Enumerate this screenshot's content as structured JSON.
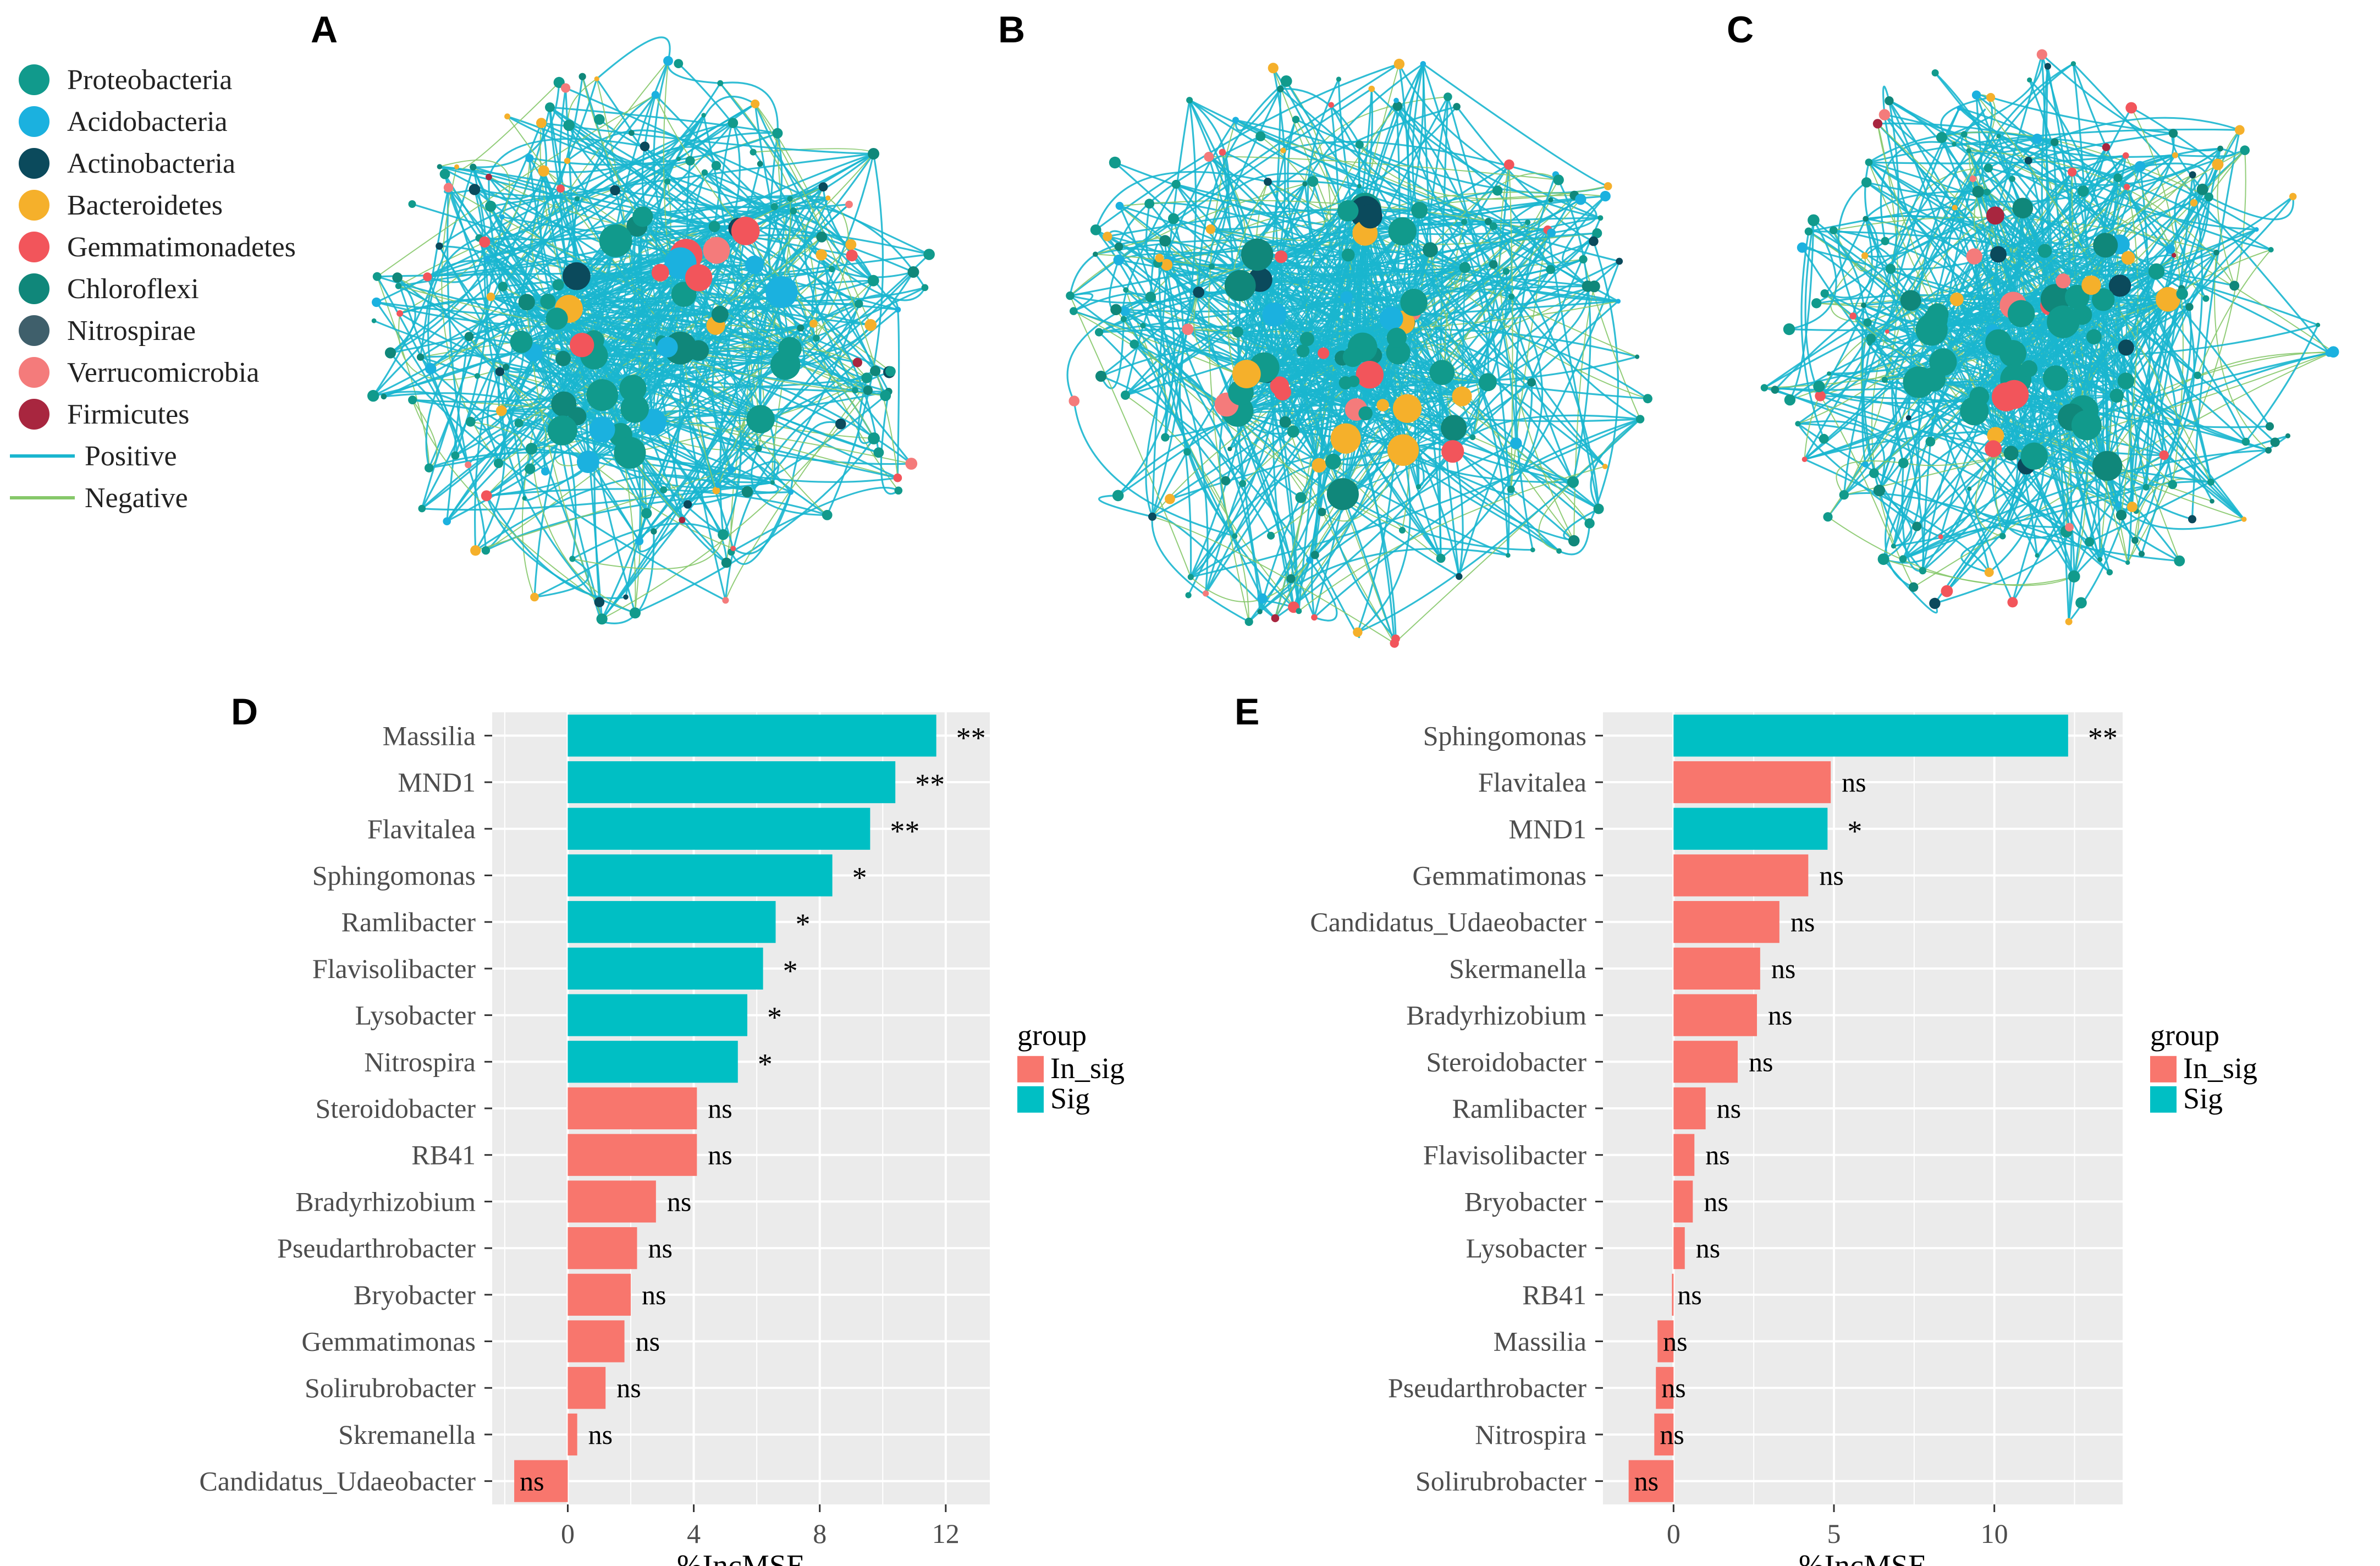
{
  "panels": {
    "a": "A",
    "b": "B",
    "c": "C",
    "d": "D",
    "e": "E"
  },
  "legend": {
    "phyla": [
      {
        "name": "Proteobacteria",
        "color": "#119a8c"
      },
      {
        "name": "Acidobacteria",
        "color": "#1bb1df"
      },
      {
        "name": "Actinobacteria",
        "color": "#0b4a5c"
      },
      {
        "name": "Bacteroidetes",
        "color": "#f5b02b"
      },
      {
        "name": "Gemmatimonadetes",
        "color": "#f2555b"
      },
      {
        "name": "Chloroflexi",
        "color": "#10877a"
      },
      {
        "name": "Nitrospirae",
        "color": "#3f5f6b"
      },
      {
        "name": "Verrucomicrobia",
        "color": "#f47b7b"
      },
      {
        "name": "Firmicutes",
        "color": "#a8263f"
      }
    ],
    "edges": [
      {
        "name": "Positive",
        "color": "#1ab6cf"
      },
      {
        "name": "Negative",
        "color": "#86c86a"
      }
    ]
  },
  "chart_data": [
    {
      "type": "bar",
      "panel": "D",
      "orientation": "horizontal",
      "categories": [
        "Massilia",
        "MND1",
        "Flavitalea",
        "Sphingomonas",
        "Ramlibacter",
        "Flavisolibacter",
        "Lysobacter",
        "Nitrospira",
        "Steroidobacter",
        "RB41",
        "Bradyrhizobium",
        "Pseudarthrobacter",
        "Bryobacter",
        "Gemmatimonas",
        "Solirubrobacter",
        "Skremanella",
        "Candidatus_Udaeobacter"
      ],
      "values": [
        11.7,
        10.4,
        9.6,
        8.4,
        6.6,
        6.2,
        5.7,
        5.4,
        4.1,
        4.1,
        2.8,
        2.2,
        2.0,
        1.8,
        1.2,
        0.3,
        -1.7
      ],
      "groups": [
        "Sig",
        "Sig",
        "Sig",
        "Sig",
        "Sig",
        "Sig",
        "Sig",
        "Sig",
        "In_sig",
        "In_sig",
        "In_sig",
        "In_sig",
        "In_sig",
        "In_sig",
        "In_sig",
        "In_sig",
        "In_sig"
      ],
      "labels": [
        "**",
        "**",
        "**",
        "*",
        "*",
        "*",
        "*",
        "*",
        "ns",
        "ns",
        "ns",
        "ns",
        "ns",
        "ns",
        "ns",
        "ns",
        "ns"
      ],
      "xlabel": "%IncMSE",
      "xlim": [
        -2.4,
        13.4
      ],
      "xticks": [
        0,
        4,
        8,
        12
      ],
      "xtick_labels": [
        "0",
        "4",
        "8",
        "12"
      ],
      "legend_title": "group",
      "legend_entries": [
        {
          "name": "In_sig",
          "color": "#f8766d"
        },
        {
          "name": "Sig",
          "color": "#00bfc4"
        }
      ]
    },
    {
      "type": "bar",
      "panel": "E",
      "orientation": "horizontal",
      "categories": [
        "Sphingomonas",
        "Flavitalea",
        "MND1",
        "Gemmatimonas",
        "Candidatus_Udaeobacter",
        "Skermanella",
        "Bradyrhizobium",
        "Steroidobacter",
        "Ramlibacter",
        "Flavisolibacter",
        "Bryobacter",
        "Lysobacter",
        "RB41",
        "Massilia",
        "Pseudarthrobacter",
        "Nitrospira",
        "Solirubrobacter"
      ],
      "values": [
        12.3,
        4.9,
        4.8,
        4.2,
        3.3,
        2.7,
        2.6,
        2.0,
        1.0,
        0.65,
        0.6,
        0.35,
        -0.05,
        -0.5,
        -0.55,
        -0.6,
        -1.4
      ],
      "groups": [
        "Sig",
        "In_sig",
        "Sig",
        "In_sig",
        "In_sig",
        "In_sig",
        "In_sig",
        "In_sig",
        "In_sig",
        "In_sig",
        "In_sig",
        "In_sig",
        "In_sig",
        "In_sig",
        "In_sig",
        "In_sig",
        "In_sig"
      ],
      "labels": [
        "**",
        "ns",
        "*",
        "ns",
        "ns",
        "ns",
        "ns",
        "ns",
        "ns",
        "ns",
        "ns",
        "ns",
        "ns",
        "ns",
        "ns",
        "ns",
        "ns"
      ],
      "xlabel": "%IncMSE",
      "xlim": [
        -2.2,
        14.0
      ],
      "xticks": [
        0,
        5,
        10
      ],
      "xtick_labels": [
        "0",
        "5",
        "10"
      ],
      "legend_title": "group",
      "legend_entries": [
        {
          "name": "In_sig",
          "color": "#f8766d"
        },
        {
          "name": "Sig",
          "color": "#00bfc4"
        }
      ]
    }
  ]
}
